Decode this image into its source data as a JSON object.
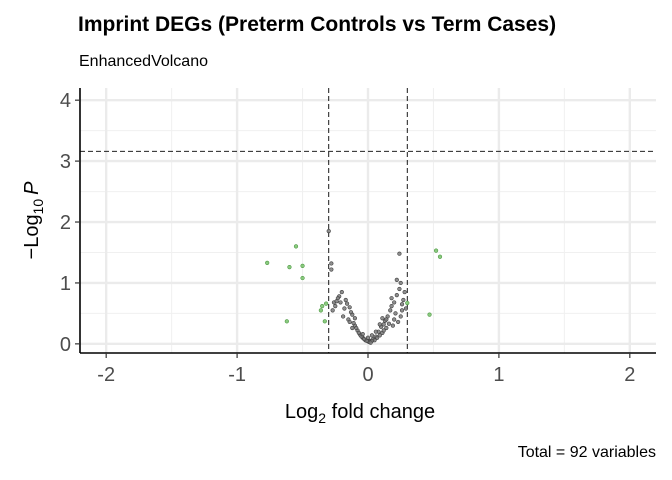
{
  "chart_data": {
    "type": "scatter",
    "title": "Imprint DEGs (Preterm Controls vs Term Cases)",
    "subtitle": "EnhancedVolcano",
    "caption": "Total = 92 variables",
    "xlabel": {
      "prefix": "Log",
      "sub": "2",
      "suffix": " fold change"
    },
    "ylabel": {
      "prefix": "−Log",
      "sub": "10",
      "suffix": "P"
    },
    "xlim": [
      -2.2,
      2.2
    ],
    "ylim": [
      -0.15,
      4.2
    ],
    "x_ticks": [
      -2,
      -1,
      0,
      1,
      2
    ],
    "x_tick_labels": [
      "-2",
      "-1",
      "0",
      "1",
      "2"
    ],
    "y_ticks": [
      0,
      1,
      2,
      3,
      4
    ],
    "y_tick_labels": [
      "0",
      "1",
      "2",
      "3",
      "4"
    ],
    "grid": true,
    "fc_cutoff": 0.3,
    "p_cutoff_neglog10": 3.16,
    "series": [
      {
        "color": "#77c16a",
        "stroke": "#4e9a43",
        "points": [
          [
            -0.77,
            1.33
          ],
          [
            -0.6,
            1.26
          ],
          [
            -0.55,
            1.6
          ],
          [
            -0.5,
            1.28
          ],
          [
            -0.5,
            1.08
          ],
          [
            -0.62,
            0.37
          ],
          [
            -0.35,
            0.62
          ],
          [
            -0.32,
            0.66
          ],
          [
            -0.33,
            0.37
          ],
          [
            -0.36,
            0.55
          ],
          [
            0.52,
            1.53
          ],
          [
            0.55,
            1.43
          ],
          [
            0.47,
            0.48
          ],
          [
            0.3,
            0.67
          ]
        ]
      },
      {
        "color": "#7a7a7a",
        "stroke": "#3d3d3d",
        "points": [
          [
            -0.3,
            1.85
          ],
          [
            -0.28,
            1.32
          ],
          [
            -0.28,
            1.22
          ],
          [
            -0.2,
            0.85
          ],
          [
            -0.22,
            0.78
          ],
          [
            -0.16,
            0.66
          ],
          [
            -0.14,
            0.6
          ],
          [
            -0.25,
            0.62
          ],
          [
            -0.12,
            0.48
          ],
          [
            -0.15,
            0.4
          ],
          [
            -0.1,
            0.42
          ],
          [
            -0.1,
            0.3
          ],
          [
            -0.08,
            0.22
          ],
          [
            -0.06,
            0.15
          ],
          [
            -0.04,
            0.1
          ],
          [
            -0.02,
            0.06
          ],
          [
            0.0,
            0.04
          ],
          [
            0.02,
            0.05
          ],
          [
            0.04,
            0.08
          ],
          [
            0.06,
            0.12
          ],
          [
            0.08,
            0.2
          ],
          [
            0.1,
            0.28
          ],
          [
            0.12,
            0.32
          ],
          [
            0.13,
            0.38
          ],
          [
            0.15,
            0.45
          ],
          [
            0.17,
            0.55
          ],
          [
            0.18,
            0.62
          ],
          [
            0.2,
            0.68
          ],
          [
            0.22,
            0.8
          ],
          [
            0.24,
            0.9
          ],
          [
            0.25,
            1.0
          ],
          [
            0.22,
            1.05
          ],
          [
            0.24,
            1.48
          ],
          [
            0.27,
            0.72
          ],
          [
            0.28,
            0.85
          ],
          [
            0.26,
            0.55
          ],
          [
            0.25,
            0.45
          ],
          [
            0.23,
            0.36
          ],
          [
            0.19,
            0.3
          ],
          [
            0.16,
            0.33
          ],
          [
            0.14,
            0.26
          ],
          [
            0.11,
            0.18
          ],
          [
            0.09,
            0.14
          ],
          [
            0.07,
            0.1
          ],
          [
            0.05,
            0.06
          ],
          [
            0.03,
            0.05
          ],
          [
            0.01,
            0.03
          ],
          [
            -0.01,
            0.05
          ],
          [
            -0.03,
            0.08
          ],
          [
            -0.05,
            0.12
          ],
          [
            -0.07,
            0.18
          ],
          [
            -0.09,
            0.26
          ],
          [
            -0.11,
            0.34
          ],
          [
            -0.13,
            0.52
          ],
          [
            -0.17,
            0.72
          ],
          [
            -0.18,
            0.58
          ],
          [
            -0.19,
            0.45
          ],
          [
            -0.21,
            0.68
          ],
          [
            -0.23,
            0.75
          ],
          [
            -0.26,
            0.68
          ],
          [
            -0.27,
            0.55
          ],
          [
            0.12,
            0.22
          ],
          [
            0.14,
            0.4
          ],
          [
            0.2,
            0.4
          ],
          [
            0.21,
            0.5
          ],
          [
            0.29,
            0.58
          ],
          [
            -0.04,
            0.16
          ],
          [
            0.0,
            0.1
          ],
          [
            0.03,
            0.14
          ],
          [
            -0.12,
            0.26
          ],
          [
            0.06,
            0.2
          ],
          [
            0.11,
            0.42
          ],
          [
            -0.14,
            0.36
          ],
          [
            0.18,
            0.75
          ],
          [
            -0.24,
            0.7
          ],
          [
            0.26,
            0.65
          ],
          [
            0.09,
            0.32
          ],
          [
            0.02,
            0.02
          ]
        ]
      }
    ]
  }
}
